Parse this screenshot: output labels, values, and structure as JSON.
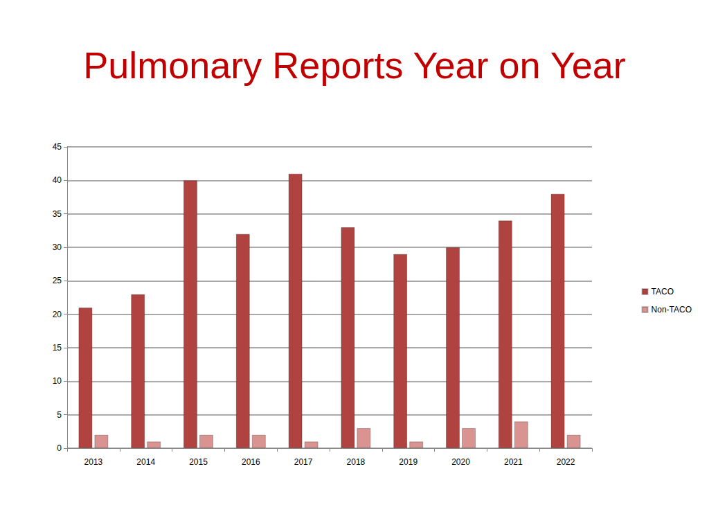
{
  "chart_data": {
    "type": "bar",
    "title": "Pulmonary Reports Year on Year",
    "categories": [
      "2013",
      "2014",
      "2015",
      "2016",
      "2017",
      "2018",
      "2019",
      "2020",
      "2021",
      "2022"
    ],
    "series": [
      {
        "name": "TACO",
        "color": "#b0433f",
        "values": [
          21,
          23,
          40,
          32,
          41,
          33,
          29,
          30,
          34,
          38
        ]
      },
      {
        "name": "Non-TACO",
        "color": "#d99391",
        "values": [
          2,
          1,
          2,
          2,
          1,
          3,
          1,
          3,
          4,
          2
        ]
      }
    ],
    "ylim": [
      0,
      45
    ],
    "yticks": [
      0,
      5,
      10,
      15,
      20,
      25,
      30,
      35,
      40,
      45
    ],
    "grid": true,
    "legend": "right"
  }
}
